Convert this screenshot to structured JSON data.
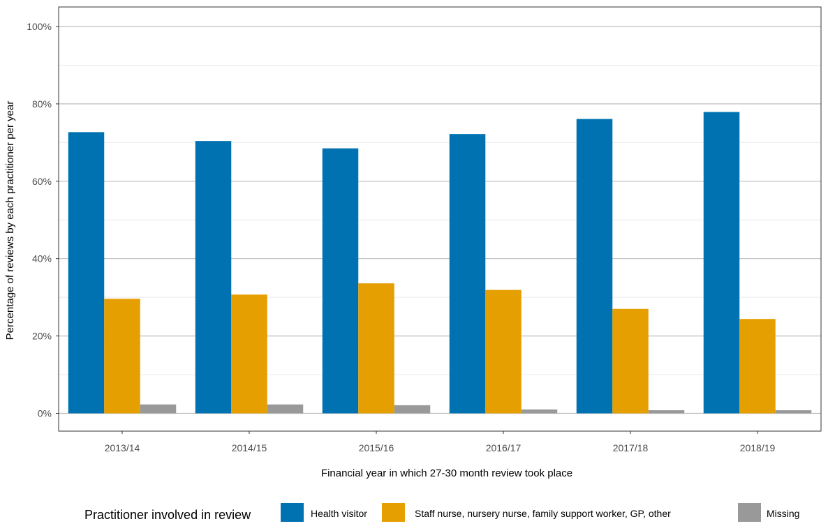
{
  "chart_data": {
    "type": "bar",
    "xlabel": "Financial year in which 27-30 month review took place",
    "ylabel": "Percentage of reviews by each practitioner per year",
    "categories": [
      "2013/14",
      "2014/15",
      "2015/16",
      "2016/17",
      "2017/18",
      "2018/19"
    ],
    "y_ticks": [
      "0%",
      "20%",
      "40%",
      "60%",
      "80%",
      "100%"
    ],
    "ylim": [
      0,
      100
    ],
    "grid": true,
    "series": [
      {
        "name": "Health visitor",
        "color": "#0072B2",
        "values": [
          72.7,
          70.4,
          68.5,
          72.2,
          76.1,
          77.9
        ]
      },
      {
        "name": "Staff nurse, nursery nurse, family support worker, GP, other",
        "color": "#E69F00",
        "values": [
          29.6,
          30.7,
          33.6,
          31.9,
          27.0,
          24.4
        ]
      },
      {
        "name": "Missing",
        "color": "#999999",
        "values": [
          2.3,
          2.3,
          2.1,
          1.0,
          0.8,
          0.8
        ]
      }
    ],
    "legend": {
      "title": "Practitioner involved in review",
      "position": "bottom"
    }
  }
}
